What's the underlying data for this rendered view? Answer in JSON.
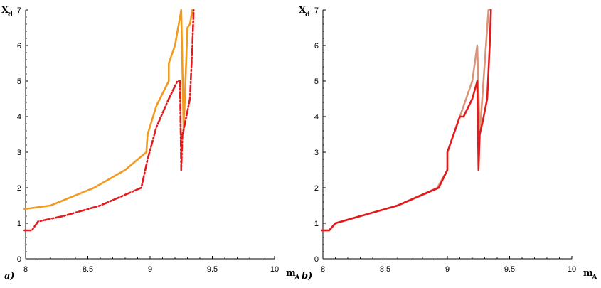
{
  "chart_data": [
    {
      "type": "line",
      "panel_label": "a)",
      "xlabel": "m",
      "xlabel_sub": "A",
      "ylabel": "X",
      "ylabel_sub": "d",
      "xlim": [
        8,
        10
      ],
      "ylim": [
        0,
        7
      ],
      "xticks": [
        "8",
        "8.5",
        "9",
        "9.5",
        "10"
      ],
      "yticks": [
        "0",
        "1",
        "2",
        "3",
        "4",
        "5",
        "6",
        "7"
      ],
      "grid": false,
      "series": [
        {
          "color": "#f39a1e",
          "style": "solid",
          "x": [
            7.99,
            8.2,
            8.55,
            8.8,
            8.97,
            8.98,
            9.05,
            9.15,
            9.15,
            9.2,
            9.25,
            9.27,
            9.3,
            9.32,
            9.34,
            9.35
          ],
          "y": [
            1.4,
            1.5,
            2.0,
            2.5,
            3.0,
            3.5,
            4.3,
            5.0,
            5.5,
            6.0,
            7.0,
            3.6,
            6.5,
            6.6,
            7.0,
            7.0
          ]
        },
        {
          "color": "#e31a1c",
          "style": "dashdot",
          "x": [
            7.99,
            8.05,
            8.1,
            8.3,
            8.6,
            8.93,
            8.98,
            9.05,
            9.15,
            9.22,
            9.24,
            9.25,
            9.26,
            9.28,
            9.32,
            9.34,
            9.35
          ],
          "y": [
            0.8,
            0.8,
            1.05,
            1.2,
            1.5,
            2.0,
            2.8,
            3.7,
            4.5,
            5.0,
            5.0,
            2.5,
            3.5,
            3.8,
            4.5,
            6.0,
            7.0
          ]
        }
      ]
    },
    {
      "type": "line",
      "panel_label": "b)",
      "xlabel": "m",
      "xlabel_sub": "A",
      "ylabel": "X",
      "ylabel_sub": "d",
      "xlim": [
        8,
        10
      ],
      "ylim": [
        0,
        7
      ],
      "xticks": [
        "8",
        "8.5",
        "9",
        "9.5",
        "10"
      ],
      "yticks": [
        "0",
        "1",
        "2",
        "3",
        "4",
        "5",
        "6",
        "7"
      ],
      "grid": false,
      "series": [
        {
          "color": "#d9957a",
          "style": "solid",
          "x": [
            7.99,
            8.05,
            8.1,
            8.6,
            8.92,
            9.0,
            9.0,
            9.15,
            9.2,
            9.24,
            9.26,
            9.28,
            9.3,
            9.32,
            9.33,
            9.34
          ],
          "y": [
            0.8,
            0.8,
            1.0,
            1.5,
            2.0,
            2.5,
            3.0,
            4.5,
            5.0,
            6.0,
            3.5,
            4.5,
            5.5,
            6.5,
            7.0,
            7.0
          ]
        },
        {
          "color": "#e31a1c",
          "style": "solid",
          "x": [
            7.99,
            8.05,
            8.1,
            8.6,
            8.93,
            9.0,
            9.0,
            9.1,
            9.13,
            9.2,
            9.24,
            9.25,
            9.26,
            9.28,
            9.32,
            9.34,
            9.35
          ],
          "y": [
            0.8,
            0.8,
            1.0,
            1.5,
            2.0,
            2.5,
            3.0,
            4.0,
            4.0,
            4.5,
            5.0,
            2.5,
            3.5,
            3.8,
            4.5,
            6.0,
            7.0
          ]
        }
      ]
    }
  ]
}
